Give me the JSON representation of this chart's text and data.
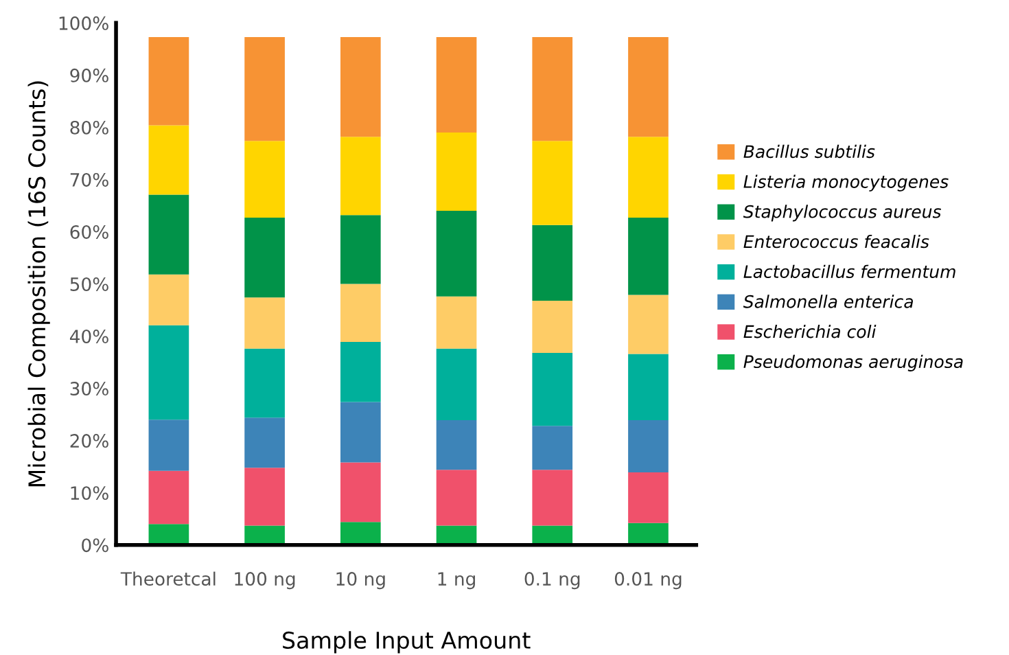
{
  "chart_data": {
    "type": "bar",
    "stacked": true,
    "xlabel": "Sample Input Amount",
    "ylabel": "Microbial Composition (16S Counts)",
    "categories": [
      "Theoretcal",
      "100 ng",
      "10 ng",
      "1 ng",
      "0.1 ng",
      "0.01 ng"
    ],
    "series": [
      {
        "name": "Pseudomonas aeruginosa",
        "color": "#0bb14b",
        "values": [
          4.0,
          3.7,
          4.4,
          3.7,
          3.7,
          4.2
        ]
      },
      {
        "name": "Escherichia coli",
        "color": "#f0516b",
        "values": [
          10.2,
          11.1,
          11.4,
          10.7,
          10.7,
          9.7
        ]
      },
      {
        "name": "Salmonella enterica",
        "color": "#3d84b8",
        "values": [
          9.8,
          9.6,
          11.6,
          9.5,
          8.4,
          10.0
        ]
      },
      {
        "name": "Lactobacillus fermentum",
        "color": "#00b09b",
        "values": [
          18.1,
          13.2,
          11.5,
          13.7,
          14.0,
          12.7
        ]
      },
      {
        "name": "Enterococcus feacalis",
        "color": "#fecc66",
        "values": [
          9.7,
          9.8,
          11.1,
          10.0,
          10.0,
          11.3
        ]
      },
      {
        "name": "Staphylococcus aureus",
        "color": "#019349",
        "values": [
          15.3,
          15.3,
          13.2,
          16.4,
          14.5,
          14.8
        ]
      },
      {
        "name": "Listeria monocytogenes",
        "color": "#ffd500",
        "values": [
          13.3,
          14.7,
          15.0,
          15.0,
          16.1,
          15.5
        ]
      },
      {
        "name": "Bacillus subtilis",
        "color": "#f79334",
        "values": [
          16.9,
          19.9,
          19.1,
          18.3,
          19.9,
          19.1
        ]
      }
    ],
    "ylim": [
      0,
      100
    ],
    "yticks": [
      {
        "value": 0,
        "label": "0%"
      },
      {
        "value": 10,
        "label": "10%"
      },
      {
        "value": 20,
        "label": "20%"
      },
      {
        "value": 30,
        "label": "30%"
      },
      {
        "value": 40,
        "label": "40%"
      },
      {
        "value": 50,
        "label": "50%"
      },
      {
        "value": 60,
        "label": "60%"
      },
      {
        "value": 70,
        "label": "70%"
      },
      {
        "value": 80,
        "label": "80%"
      },
      {
        "value": 90,
        "label": "90%"
      },
      {
        "value": 100,
        "label": "100%"
      }
    ],
    "grid": false,
    "legend": "right"
  }
}
